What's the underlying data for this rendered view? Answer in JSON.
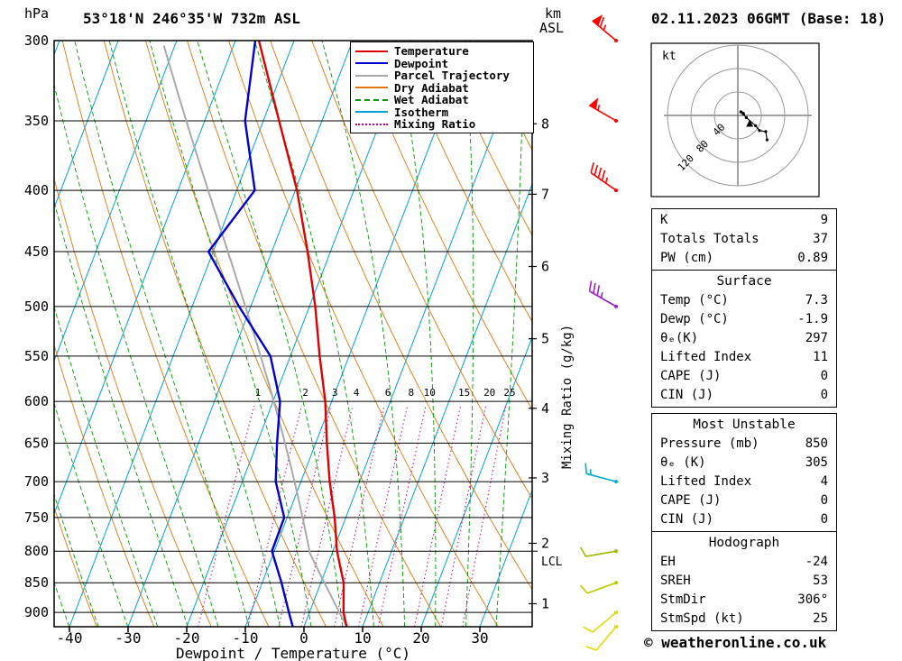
{
  "header": {
    "station": "53°18'N 246°35'W 732m ASL",
    "datetime": "02.11.2023 06GMT (Base: 18)"
  },
  "axes": {
    "pressure_unit": "hPa",
    "km_label_line1": "km",
    "km_label_line2": "ASL",
    "x_label": "Dewpoint / Temperature (°C)",
    "right_label": "Mixing Ratio (g/kg)",
    "lcl_label": "LCL"
  },
  "colors": {
    "isotherm": "#00a0d0",
    "dry_adiabat": "#dd7711",
    "wet_adiabat": "#009900",
    "mixing_ratio": "#cc0077",
    "temperature": "#dd0000",
    "dewpoint": "#0000cc",
    "parcel": "#aaaaaa",
    "grid": "#000000"
  },
  "legend": [
    {
      "label": "Temperature",
      "color": "#dd0000",
      "style": "solid",
      "width": 2.4
    },
    {
      "label": "Dewpoint",
      "color": "#0000cc",
      "style": "solid",
      "width": 2.4
    },
    {
      "label": "Parcel Trajectory",
      "color": "#aaaaaa",
      "style": "solid",
      "width": 2.2
    },
    {
      "label": "Dry Adiabat",
      "color": "#dd7711",
      "style": "solid",
      "width": 2
    },
    {
      "label": "Wet Adiabat",
      "color": "#009900",
      "style": "dashed",
      "width": 2
    },
    {
      "label": "Isotherm",
      "color": "#00a0d0",
      "style": "solid",
      "width": 2
    },
    {
      "label": "Mixing Ratio",
      "color": "#cc0077",
      "style": "dotted",
      "width": 2
    }
  ],
  "chart_data": {
    "type": "line",
    "title": "Skew-T log-P sounding",
    "x_axis": {
      "label": "Dewpoint / Temperature (°C)",
      "ticks": [
        -40,
        -30,
        -20,
        -10,
        0,
        10,
        20,
        30
      ],
      "unit": "°C"
    },
    "y_axis": {
      "label": "hPa",
      "scale": "log",
      "ticks": [
        300,
        350,
        400,
        450,
        500,
        550,
        600,
        650,
        700,
        750,
        800,
        850,
        900
      ],
      "top": 300,
      "bottom": 925
    },
    "km_ticks": [
      {
        "km": 1,
        "p": 885
      },
      {
        "km": 2,
        "p": 788
      },
      {
        "km": 3,
        "p": 695
      },
      {
        "km": 4,
        "p": 608
      },
      {
        "km": 5,
        "p": 532
      },
      {
        "km": 6,
        "p": 463
      },
      {
        "km": 7,
        "p": 403
      },
      {
        "km": 8,
        "p": 352
      }
    ],
    "lcl_pressure": 800,
    "mixing_ratio_values": [
      1,
      2,
      3,
      4,
      6,
      8,
      10,
      15,
      20,
      25
    ],
    "grid": {
      "isotherm_step": 10,
      "dry_adiabat_step": 10,
      "wet_adiabat_step": 5
    },
    "series": [
      {
        "name": "Temperature",
        "color": "#dd0000",
        "points": [
          [
            925,
            7.3
          ],
          [
            900,
            5.8
          ],
          [
            850,
            3.9
          ],
          [
            800,
            0.7
          ],
          [
            750,
            -1.9
          ],
          [
            700,
            -5.1
          ],
          [
            650,
            -8.1
          ],
          [
            600,
            -11.1
          ],
          [
            550,
            -15.0
          ],
          [
            500,
            -19.0
          ],
          [
            450,
            -23.9
          ],
          [
            400,
            -29.7
          ],
          [
            350,
            -37.3
          ],
          [
            300,
            -46.0
          ]
        ]
      },
      {
        "name": "Dewpoint",
        "color": "#0000cc",
        "points": [
          [
            925,
            -1.9
          ],
          [
            900,
            -3.5
          ],
          [
            850,
            -6.7
          ],
          [
            800,
            -10.4
          ],
          [
            750,
            -10.5
          ],
          [
            700,
            -14.3
          ],
          [
            650,
            -16.6
          ],
          [
            600,
            -18.8
          ],
          [
            550,
            -23.4
          ],
          [
            500,
            -32.0
          ],
          [
            450,
            -40.8
          ],
          [
            400,
            -36.9
          ],
          [
            350,
            -43.1
          ],
          [
            300,
            -46.6
          ]
        ]
      }
    ],
    "parcel": {
      "name": "Parcel Trajectory",
      "color": "#aaaaaa",
      "surface": {
        "p": 925,
        "t": 7.3,
        "td": -1.9
      }
    },
    "winds": [
      {
        "p": 300,
        "spd": 65,
        "dir": 310,
        "color": "#ff0000"
      },
      {
        "p": 350,
        "spd": 55,
        "dir": 300,
        "color": "#ff0000"
      },
      {
        "p": 400,
        "spd": 45,
        "dir": 305,
        "color": "#ff0000"
      },
      {
        "p": 500,
        "spd": 35,
        "dir": 300,
        "color": "#9922cc"
      },
      {
        "p": 700,
        "spd": 15,
        "dir": 285,
        "color": "#00aacc"
      },
      {
        "p": 800,
        "spd": 10,
        "dir": 260,
        "color": "#99bb00"
      },
      {
        "p": 850,
        "spd": 10,
        "dir": 250,
        "color": "#bbcc00"
      },
      {
        "p": 900,
        "spd": 8,
        "dir": 230,
        "color": "#dddd00"
      },
      {
        "p": 925,
        "spd": 8,
        "dir": 220,
        "color": "#dddd00"
      }
    ]
  },
  "hodograph": {
    "unit": "kt",
    "rings": [
      40,
      80,
      120
    ],
    "storm": {
      "dir_deg": 306,
      "spd_kt": 25
    }
  },
  "tables": [
    {
      "id": "indices",
      "rows": [
        [
          "K",
          "9"
        ],
        [
          "Totals Totals",
          "37"
        ],
        [
          "PW (cm)",
          "0.89"
        ]
      ]
    },
    {
      "id": "surface",
      "title": "Surface",
      "rows": [
        [
          "Temp (°C)",
          "7.3"
        ],
        [
          "Dewp (°C)",
          "-1.9"
        ],
        [
          "θₑ(K)",
          "297"
        ],
        [
          "Lifted Index",
          "11"
        ],
        [
          "CAPE (J)",
          "0"
        ],
        [
          "CIN (J)",
          "0"
        ]
      ]
    },
    {
      "id": "most-unstable",
      "title": "Most Unstable",
      "rows": [
        [
          "Pressure (mb)",
          "850"
        ],
        [
          "θₑ (K)",
          "305"
        ],
        [
          "Lifted Index",
          "4"
        ],
        [
          "CAPE (J)",
          "0"
        ],
        [
          "CIN (J)",
          "0"
        ]
      ]
    },
    {
      "id": "hodograph",
      "title": "Hodograph",
      "rows": [
        [
          "EH",
          "-24"
        ],
        [
          "SREH",
          "53"
        ],
        [
          "StmDir",
          "306°"
        ],
        [
          "StmSpd (kt)",
          "25"
        ]
      ]
    }
  ],
  "footer": "© weatheronline.co.uk"
}
